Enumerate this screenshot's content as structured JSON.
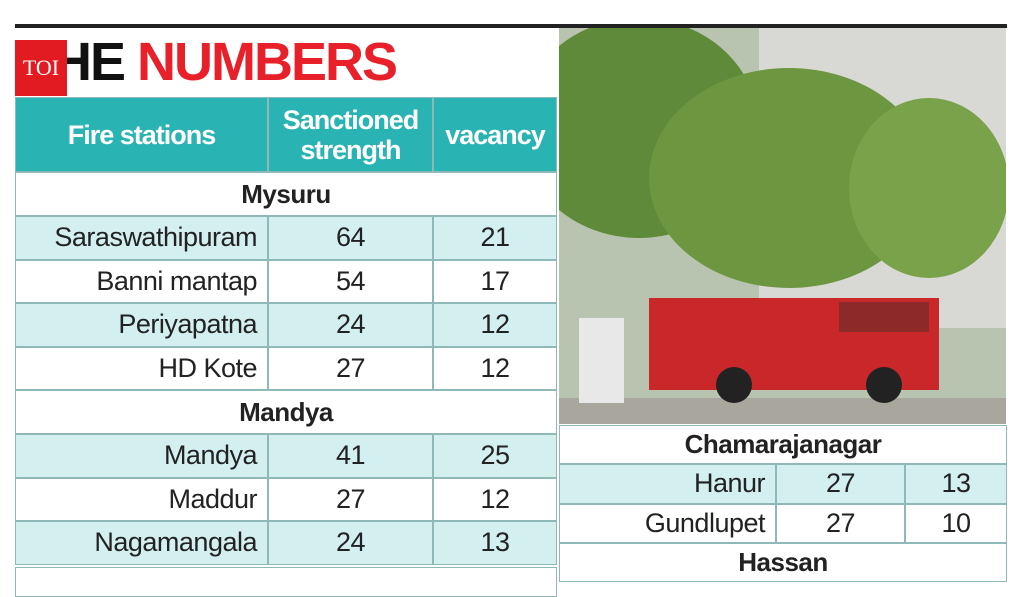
{
  "logo": "TOI",
  "title": {
    "dark": "THE",
    "red": "NUMBERS"
  },
  "table": {
    "header": [
      "Fire stations",
      "Sanctioned strength",
      "vacancy"
    ],
    "groups": [
      {
        "name": "Mysuru",
        "rows": [
          [
            "Saraswathipuram",
            64,
            21
          ],
          [
            "Banni mantap",
            54,
            17
          ],
          [
            "Periyapatna",
            24,
            12
          ],
          [
            "HD Kote",
            27,
            12
          ]
        ]
      },
      {
        "name": "Mandya",
        "rows": [
          [
            "Mandya",
            41,
            25
          ],
          [
            "Maddur",
            27,
            12
          ],
          [
            "Nagamangala",
            24,
            13
          ]
        ]
      }
    ]
  },
  "table2": {
    "groups": [
      {
        "name": "Chamarajanagar",
        "rows": [
          [
            "Hanur",
            27,
            13
          ],
          [
            "Gundlupet",
            27,
            10
          ]
        ]
      },
      {
        "name": "Hassan",
        "rows": []
      }
    ]
  }
}
